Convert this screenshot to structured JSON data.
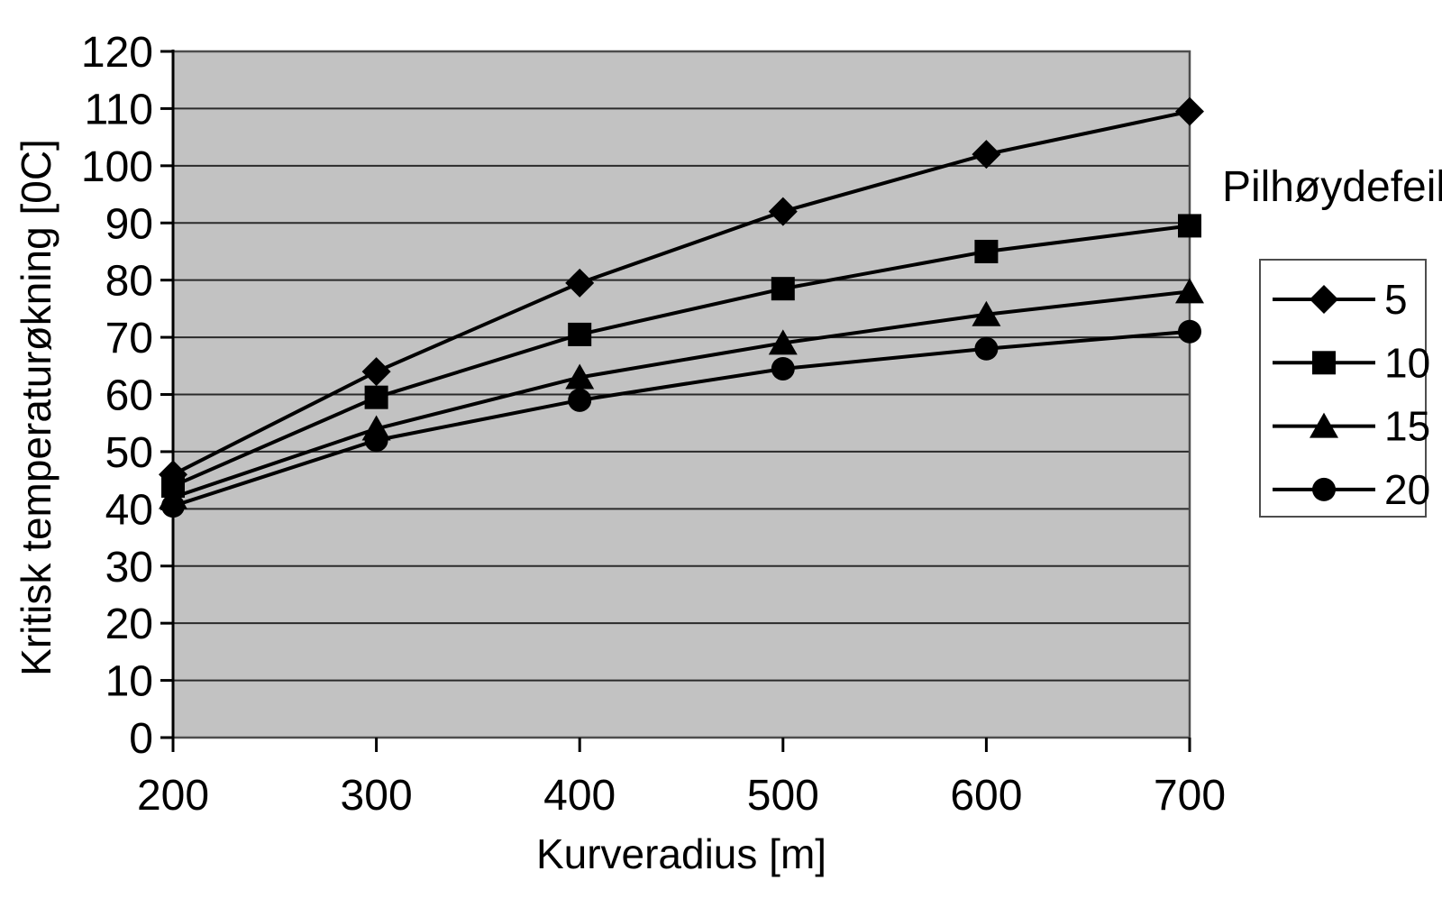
{
  "chart_data": {
    "type": "line",
    "title": "",
    "xlabel": "Kurveradius [m]",
    "ylabel": "Kritisk temperaturøkning [0C]",
    "legend_title": "Pilhøydefeil",
    "legend_position": "right",
    "grid": "horizontal",
    "xlim": [
      200,
      700
    ],
    "ylim": [
      0,
      120
    ],
    "y_tick_step": 10,
    "x_ticks": [
      200,
      300,
      400,
      500,
      600,
      700
    ],
    "x": [
      200,
      300,
      400,
      500,
      600,
      700
    ],
    "series": [
      {
        "name": "5",
        "marker": "diamond",
        "values": [
          46,
          64,
          79.5,
          92,
          102,
          109.5
        ]
      },
      {
        "name": "10",
        "marker": "square",
        "values": [
          44,
          59.5,
          70.5,
          78.5,
          85,
          89.5
        ]
      },
      {
        "name": "15",
        "marker": "triangle",
        "values": [
          42,
          54,
          63,
          69,
          74,
          78
        ]
      },
      {
        "name": "20",
        "marker": "circle",
        "values": [
          40.5,
          52,
          59,
          64.5,
          68,
          71
        ]
      }
    ],
    "colors": {
      "plot_bg": "#c2c2c2",
      "gridline": "#2a2a2a",
      "line": "#000000",
      "border": "#4d4d4d",
      "axis": "#000000",
      "text": "#000000",
      "legend_bg": "#ffffff"
    }
  }
}
